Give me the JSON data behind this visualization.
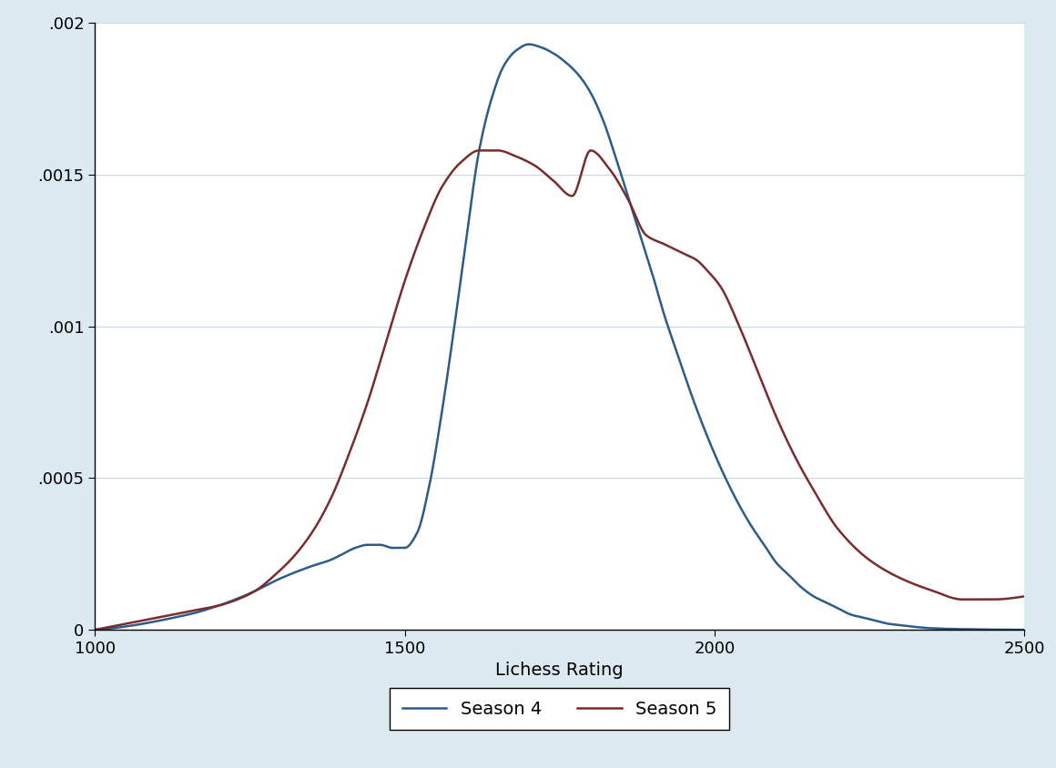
{
  "background_color": "#dce9f0",
  "plot_background": "#ffffff",
  "xlabel": "Lichess Rating",
  "xlim": [
    1000,
    2500
  ],
  "ylim": [
    0,
    0.002
  ],
  "yticks": [
    0,
    0.0005,
    0.001,
    0.0015,
    0.002
  ],
  "ytick_labels": [
    "0",
    ".0005",
    ".001",
    ".0015",
    ".002"
  ],
  "xticks": [
    1000,
    1500,
    2000,
    2500
  ],
  "season4_color": "#2b5c8a",
  "season5_color": "#7a2b2b",
  "legend_labels": [
    "Season 4",
    "Season 5"
  ],
  "grid_color": "#c8d8e4",
  "label_fontsize": 14,
  "tick_fontsize": 13,
  "legend_fontsize": 14,
  "line_width": 1.8,
  "season4_x": [
    1000,
    1150,
    1200,
    1250,
    1300,
    1350,
    1380,
    1400,
    1420,
    1440,
    1460,
    1480,
    1500,
    1520,
    1540,
    1560,
    1580,
    1600,
    1620,
    1640,
    1660,
    1680,
    1700,
    1720,
    1740,
    1760,
    1780,
    1800,
    1820,
    1840,
    1860,
    1880,
    1900,
    1920,
    1940,
    1960,
    1980,
    2000,
    2020,
    2040,
    2060,
    2080,
    2100,
    2120,
    2140,
    2160,
    2180,
    2200,
    2220,
    2240,
    2260,
    2280,
    2300,
    2350,
    2400,
    2500
  ],
  "season4_y": [
    0.0,
    5e-05,
    8e-05,
    0.00012,
    0.00017,
    0.00021,
    0.00023,
    0.00025,
    0.00027,
    0.00028,
    0.00028,
    0.00027,
    0.00027,
    0.00032,
    0.00048,
    0.00072,
    0.001,
    0.0013,
    0.00158,
    0.00175,
    0.00186,
    0.00191,
    0.00193,
    0.00192,
    0.0019,
    0.00187,
    0.00183,
    0.00177,
    0.00168,
    0.00156,
    0.00143,
    0.0013,
    0.00117,
    0.00103,
    0.00091,
    0.00079,
    0.00068,
    0.00058,
    0.00049,
    0.00041,
    0.00034,
    0.00028,
    0.00022,
    0.00018,
    0.00014,
    0.00011,
    9e-05,
    7e-05,
    5e-05,
    4e-05,
    3e-05,
    2e-05,
    1.5e-05,
    5e-06,
    2e-06,
    0.0
  ],
  "season5_x": [
    1000,
    1150,
    1200,
    1230,
    1260,
    1290,
    1320,
    1350,
    1380,
    1410,
    1440,
    1470,
    1500,
    1530,
    1560,
    1590,
    1620,
    1650,
    1680,
    1710,
    1740,
    1770,
    1800,
    1830,
    1860,
    1890,
    1920,
    1950,
    1970,
    1990,
    2010,
    2040,
    2070,
    2100,
    2130,
    2160,
    2200,
    2250,
    2300,
    2350,
    2400,
    2450,
    2500
  ],
  "season5_y": [
    0.0,
    6e-05,
    8e-05,
    0.0001,
    0.00013,
    0.00018,
    0.00024,
    0.00032,
    0.00043,
    0.00058,
    0.00075,
    0.00095,
    0.00115,
    0.00132,
    0.00146,
    0.00154,
    0.00158,
    0.00158,
    0.00156,
    0.00153,
    0.00148,
    0.00143,
    0.00158,
    0.00152,
    0.00142,
    0.0013,
    0.00127,
    0.00124,
    0.00122,
    0.00118,
    0.00113,
    0.001,
    0.00085,
    0.0007,
    0.00057,
    0.00046,
    0.00033,
    0.00023,
    0.00017,
    0.00013,
    0.0001,
    0.0001,
    0.00011
  ]
}
